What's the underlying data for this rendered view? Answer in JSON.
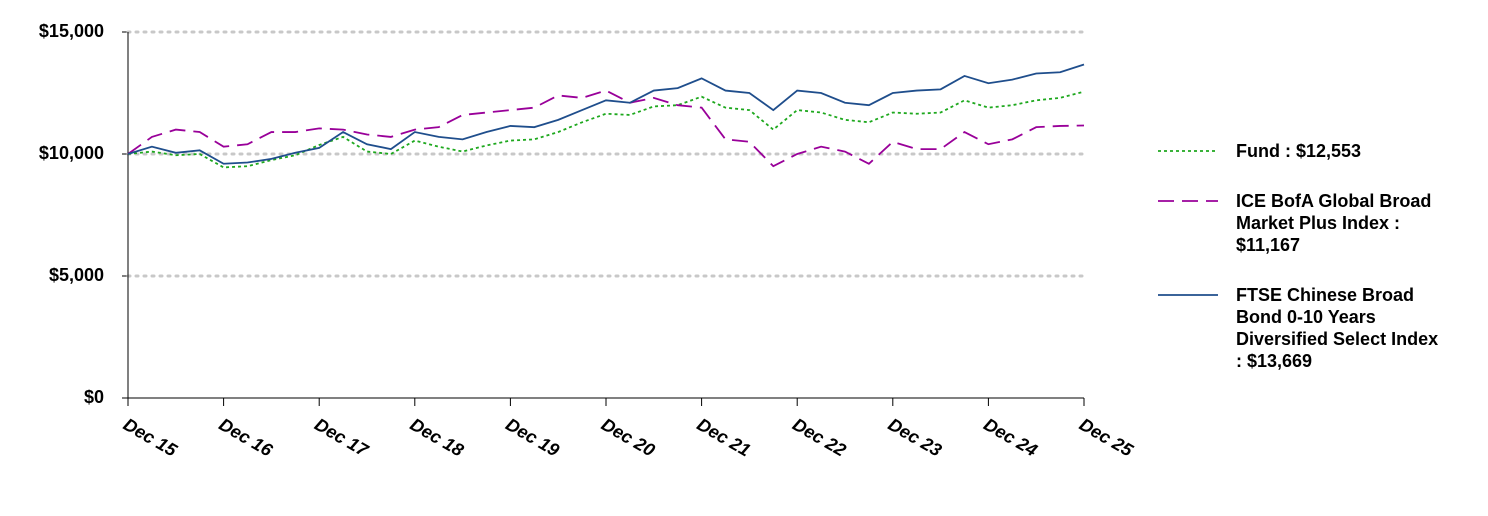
{
  "chart_data": {
    "type": "line",
    "categories": [
      "Dec 15",
      null,
      null,
      null,
      "Dec 16",
      null,
      null,
      null,
      "Dec 17",
      null,
      null,
      null,
      "Dec 18",
      null,
      null,
      null,
      "Dec 19",
      null,
      null,
      null,
      "Dec 20",
      null,
      null,
      null,
      "Dec 21",
      null,
      null,
      null,
      "Dec 22",
      null,
      null,
      null,
      "Dec 23",
      null,
      null,
      null,
      "Dec 24",
      null,
      null,
      null,
      "Dec 25"
    ],
    "series": [
      {
        "name": "Fund : $12,553",
        "color": "#1ea81e",
        "values": [
          10000,
          10100,
          9950,
          10000,
          9450,
          9500,
          9750,
          9950,
          10370,
          10700,
          10100,
          10000,
          10550,
          10300,
          10100,
          10350,
          10550,
          10600,
          10900,
          11300,
          11650,
          11600,
          11950,
          12000,
          12350,
          11900,
          11800,
          11000,
          11800,
          11700,
          11400,
          11300,
          11700,
          11650,
          11700,
          12200,
          11900,
          12000,
          12200,
          12300,
          12553
        ]
      },
      {
        "name": "ICE BofA Global Broad Market Plus Index : $11,167",
        "color": "#990099",
        "values": [
          10000,
          10700,
          11000,
          10900,
          10300,
          10400,
          10900,
          10900,
          11050,
          11000,
          10800,
          10700,
          11000,
          11100,
          11600,
          11700,
          11800,
          11900,
          12400,
          12300,
          12600,
          12100,
          12300,
          12000,
          11900,
          10600,
          10500,
          9500,
          10000,
          10300,
          10100,
          9600,
          10500,
          10200,
          10200,
          10900,
          10400,
          10600,
          11100,
          11150,
          11167
        ]
      },
      {
        "name": "FTSE Chinese Broad Bond 0-10 Years Diversified Select Index : $13,669",
        "color": "#1f4e8c",
        "values": [
          10000,
          10300,
          10050,
          10150,
          9600,
          9650,
          9800,
          10050,
          10250,
          10900,
          10400,
          10200,
          10900,
          10700,
          10600,
          10900,
          11150,
          11100,
          11400,
          11800,
          12200,
          12100,
          12600,
          12700,
          13100,
          12600,
          12500,
          11800,
          12600,
          12500,
          12100,
          12000,
          12500,
          12600,
          12650,
          13200,
          12900,
          13050,
          13300,
          13350,
          13669
        ]
      }
    ],
    "ylim": [
      0,
      15000
    ],
    "yticks": [
      {
        "value": 0,
        "label": "$0"
      },
      {
        "value": 5000,
        "label": "$5,000"
      },
      {
        "value": 10000,
        "label": "$10,000"
      },
      {
        "value": 15000,
        "label": "$15,000"
      }
    ],
    "grid": true
  }
}
